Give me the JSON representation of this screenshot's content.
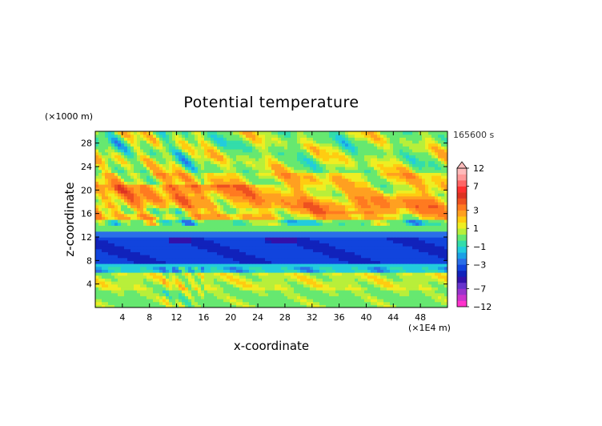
{
  "chart_data": {
    "type": "heatmap",
    "title": "Potential temperature",
    "xlabel": "x-coordinate",
    "ylabel": "z-coordinate",
    "x_unit": "(×1E4 m)",
    "y_unit": "(×1000 m)",
    "time_label": "165600 s",
    "xlim": [
      0,
      52
    ],
    "ylim": [
      0,
      30
    ],
    "x_ticks": [
      4,
      8,
      12,
      16,
      20,
      24,
      28,
      32,
      36,
      40,
      44,
      48
    ],
    "y_ticks": [
      4,
      8,
      12,
      16,
      20,
      24,
      28
    ],
    "colorbar": {
      "labels": [
        "12",
        "7",
        "3",
        "1",
        "−1",
        "−3",
        "−7",
        "−12"
      ],
      "label_values": [
        12,
        7,
        3,
        1,
        -1,
        -3,
        -7,
        -12
      ],
      "levels": [
        -12,
        -10,
        -8,
        -7,
        -6,
        -5,
        -4,
        -3,
        -2,
        -1.5,
        -1,
        -0.5,
        0.5,
        1,
        1.5,
        2,
        3,
        4,
        5,
        6,
        7,
        8,
        10,
        12
      ],
      "colors": [
        "#ff33cc",
        "#cc33cc",
        "#9933cc",
        "#6633cc",
        "#3311aa",
        "#1122bb",
        "#1144dd",
        "#2a6fe8",
        "#1aa0e6",
        "#22ccdd",
        "#33ddaa",
        "#66e870",
        "#b8ef3a",
        "#eeee22",
        "#ffcc11",
        "#ffa020",
        "#ff7a20",
        "#ee5020",
        "#dd3322",
        "#ff3030",
        "#ff6666",
        "#ff9999",
        "#ffbbbb"
      ],
      "extend": "max"
    },
    "bands": [
      {
        "z_min": 0,
        "z_max": 3,
        "value": 0.3
      },
      {
        "z_min": 3,
        "z_max": 6,
        "value": 0.9
      },
      {
        "z_min": 6,
        "z_max": 7.5,
        "value": -1.3
      },
      {
        "z_min": 7.5,
        "z_max": 12,
        "value": -3.5
      },
      {
        "z_min": 12,
        "z_max": 13,
        "value": -2.5
      },
      {
        "z_min": 13,
        "z_max": 15,
        "value": -0.2
      },
      {
        "z_min": 15,
        "z_max": 17,
        "value": 1.8
      },
      {
        "z_min": 17,
        "z_max": 19,
        "value": 2.5
      },
      {
        "z_min": 19,
        "z_max": 21,
        "value": 2.2
      },
      {
        "z_min": 21,
        "z_max": 23,
        "value": 1.5
      },
      {
        "z_min": 23,
        "z_max": 26,
        "value": 0.6
      },
      {
        "z_min": 26,
        "z_max": 30,
        "value": 0.4
      }
    ]
  }
}
